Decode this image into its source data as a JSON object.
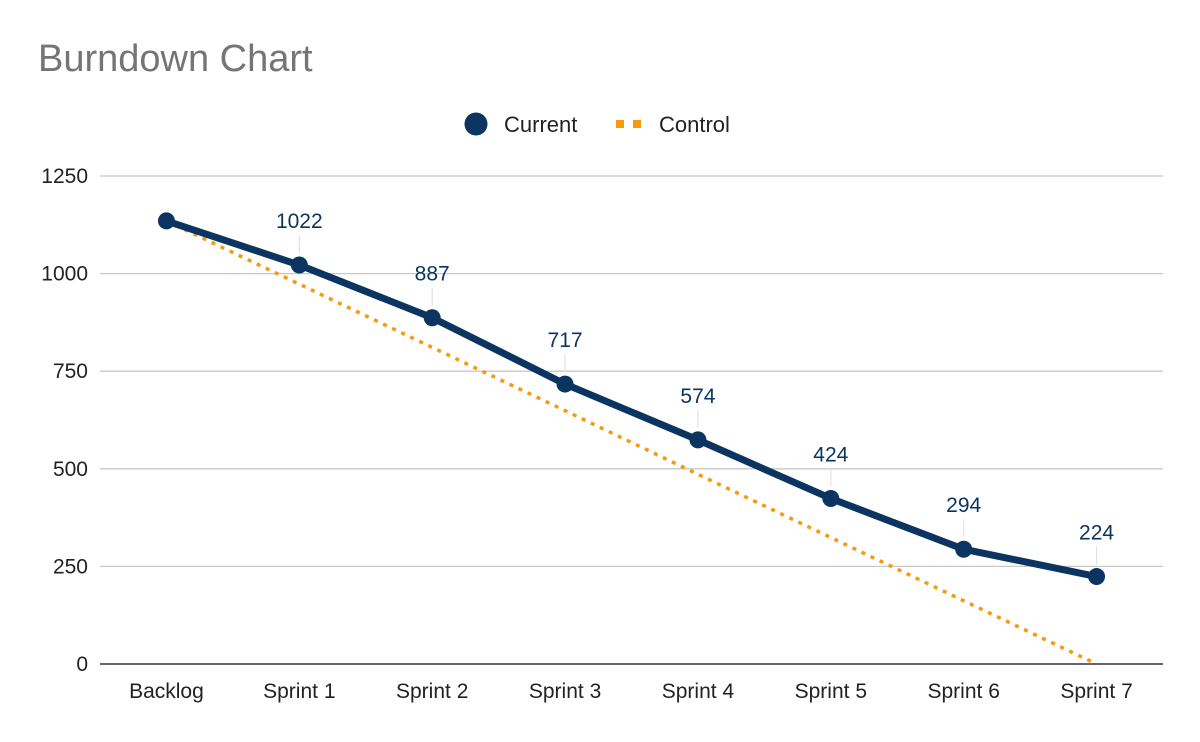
{
  "chart_data": {
    "type": "line",
    "title": "Burndown Chart",
    "xlabel": "",
    "ylabel": "",
    "categories": [
      "Backlog",
      "Sprint 1",
      "Sprint 2",
      "Sprint 3",
      "Sprint 4",
      "Sprint 5",
      "Sprint 6",
      "Sprint 7"
    ],
    "ylim": [
      0,
      1250
    ],
    "yticks": [
      0,
      250,
      500,
      750,
      1000,
      1250
    ],
    "grid": true,
    "legend_position": "top-center",
    "series": [
      {
        "name": "Current",
        "color": "#0b3560",
        "style": "solid",
        "markers": true,
        "values": [
          1135,
          1022,
          887,
          717,
          574,
          424,
          294,
          224
        ],
        "data_labels": [
          "",
          "1022",
          "887",
          "717",
          "574",
          "424",
          "294",
          "224"
        ]
      },
      {
        "name": "Control",
        "color": "#f59a0c",
        "style": "dotted",
        "markers": false,
        "values": [
          1135,
          973,
          811,
          649,
          486,
          324,
          162,
          0
        ]
      }
    ]
  }
}
